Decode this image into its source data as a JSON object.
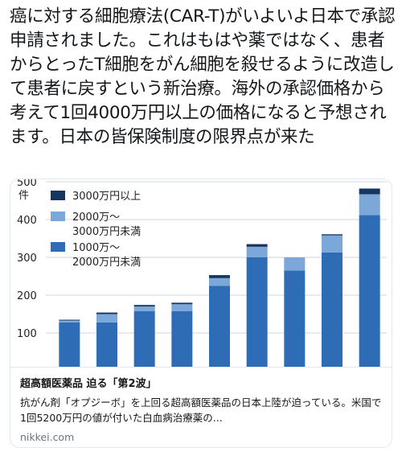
{
  "tweet": {
    "text": "癌に対する細胞療法(CAR-T)がいよいよ日本で承認申請されました。これはもはや薬ではなく、患者からとったT細胞をがん細胞を殺せるように改造して患者に戻すという新治療。海外の承認価格から考えて1回4000万円以上の価格になると予想されます。日本の皆保険制度の限界点が来た"
  },
  "card": {
    "title": "超高額医薬品 迫る「第2波」",
    "description": "抗がん剤「オプジーボ」を上回る超高額医薬品の日本上陸が迫っている。米国で1回5200万円の値が付いた白血病治療薬の...",
    "domain": "nikkei.com"
  },
  "chart_data": {
    "type": "bar",
    "stacked": true,
    "ylabel": "件",
    "ylim": [
      0,
      500
    ],
    "yticks": [
      100,
      200,
      300,
      400,
      500
    ],
    "ytick_labels": [
      "100",
      "200",
      "300",
      "400",
      "500"
    ],
    "categories": [
      "",
      "",
      "",
      "",
      "",
      "",
      "",
      "",
      ""
    ],
    "series": [
      {
        "name": "1000万～2000万円未満",
        "color": "#2e6db5",
        "values": [
          128,
          128,
          158,
          158,
          225,
          300,
          265,
          313,
          412
        ]
      },
      {
        "name": "2000万～3000万円未満",
        "color": "#7ba7d9",
        "values": [
          5,
          22,
          12,
          18,
          20,
          28,
          35,
          45,
          55
        ]
      },
      {
        "name": "3000万円以上",
        "color": "#16355f",
        "values": [
          2,
          4,
          4,
          4,
          8,
          7,
          0,
          3,
          15
        ]
      }
    ],
    "legend_position": "top-left",
    "legend": [
      {
        "label": "3000万円以上",
        "color": "#16355f"
      },
      {
        "label": "2000万～\n3000万円未満",
        "color": "#7ba7d9"
      },
      {
        "label": "1000万～\n2000万円未満",
        "color": "#2e6db5"
      }
    ],
    "grid": true
  }
}
